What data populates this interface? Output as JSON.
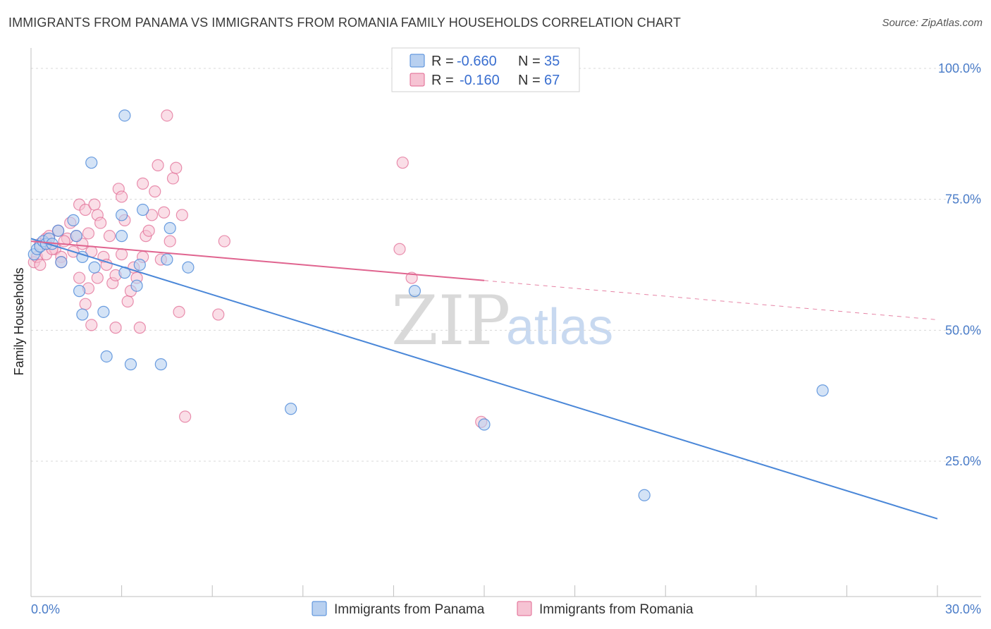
{
  "title": "IMMIGRANTS FROM PANAMA VS IMMIGRANTS FROM ROMANIA FAMILY HOUSEHOLDS CORRELATION CHART",
  "source": "Source: ZipAtlas.com",
  "watermark": {
    "zip": "ZIP",
    "atlas": "atlas"
  },
  "colors": {
    "panama": "#4a87d8",
    "panama_fill": "#b8d0f0",
    "romania": "#e0648f",
    "romania_fill": "#f6c3d3",
    "axis_text": "#4a7cc8"
  },
  "legend": {
    "r_label": "R =",
    "n_label": "N =",
    "rows": [
      {
        "series": "panama",
        "r": "-0.660",
        "n": "35"
      },
      {
        "series": "romania",
        "r": "-0.160",
        "n": "67"
      }
    ]
  },
  "bottom_legend": [
    "Immigrants from Panama",
    "Immigrants from Romania"
  ],
  "chart_data": {
    "type": "scatter",
    "title": "IMMIGRANTS FROM PANAMA VS IMMIGRANTS FROM ROMANIA FAMILY HOUSEHOLDS CORRELATION CHART",
    "xlabel": "",
    "ylabel": "Family Households",
    "xlim": [
      0,
      30
    ],
    "ylim": [
      0,
      100
    ],
    "x_tick_labels": [
      "0.0%",
      "30.0%"
    ],
    "y_ticks": [
      25,
      50,
      75,
      100
    ],
    "y_tick_labels": [
      "25.0%",
      "50.0%",
      "75.0%",
      "100.0%"
    ],
    "grid": true,
    "series": [
      {
        "name": "Immigrants from Panama",
        "r": -0.66,
        "n": 35,
        "points": [
          [
            0.1,
            64.5
          ],
          [
            0.2,
            65.5
          ],
          [
            0.3,
            66
          ],
          [
            0.4,
            67
          ],
          [
            0.5,
            66.5
          ],
          [
            0.6,
            67.5
          ],
          [
            0.7,
            66.5
          ],
          [
            0.9,
            69
          ],
          [
            1.0,
            63
          ],
          [
            1.4,
            71
          ],
          [
            1.5,
            68
          ],
          [
            1.7,
            64
          ],
          [
            2.1,
            62
          ],
          [
            3.0,
            72
          ],
          [
            3.0,
            68
          ],
          [
            3.7,
            73
          ],
          [
            2.0,
            82
          ],
          [
            3.1,
            91
          ],
          [
            3.1,
            61
          ],
          [
            1.7,
            53
          ],
          [
            3.5,
            58.5
          ],
          [
            3.6,
            62.5
          ],
          [
            2.4,
            53.5
          ],
          [
            1.6,
            57.5
          ],
          [
            2.5,
            45
          ],
          [
            3.3,
            43.5
          ],
          [
            4.3,
            43.5
          ],
          [
            4.5,
            63.5
          ],
          [
            4.6,
            69.5
          ],
          [
            5.2,
            62
          ],
          [
            8.6,
            35
          ],
          [
            12.7,
            57.5
          ],
          [
            15.0,
            32
          ],
          [
            20.3,
            18.5
          ],
          [
            26.2,
            38.5
          ]
        ],
        "trend": {
          "x": [
            0,
            30
          ],
          "y": [
            67.5,
            14
          ]
        }
      },
      {
        "name": "Immigrants from Romania",
        "r": -0.16,
        "n": 67,
        "points": [
          [
            0.1,
            63
          ],
          [
            0.2,
            64
          ],
          [
            0.3,
            62.5
          ],
          [
            0.3,
            66.5
          ],
          [
            0.5,
            64.5
          ],
          [
            0.5,
            67.5
          ],
          [
            0.6,
            68
          ],
          [
            0.8,
            65.5
          ],
          [
            0.9,
            69
          ],
          [
            1.0,
            64
          ],
          [
            1.0,
            63
          ],
          [
            1.2,
            67.5
          ],
          [
            1.3,
            70.5
          ],
          [
            1.4,
            65
          ],
          [
            1.5,
            68
          ],
          [
            1.6,
            74
          ],
          [
            1.7,
            66.5
          ],
          [
            1.8,
            73
          ],
          [
            1.9,
            68.5
          ],
          [
            2.0,
            65
          ],
          [
            2.1,
            74
          ],
          [
            2.2,
            72
          ],
          [
            2.3,
            70.5
          ],
          [
            2.4,
            64
          ],
          [
            2.5,
            62.5
          ],
          [
            2.6,
            68
          ],
          [
            2.7,
            59
          ],
          [
            2.8,
            60.5
          ],
          [
            2.9,
            77
          ],
          [
            3.0,
            75.5
          ],
          [
            3.1,
            71
          ],
          [
            3.2,
            55.5
          ],
          [
            3.3,
            57.5
          ],
          [
            3.4,
            62
          ],
          [
            3.5,
            60
          ],
          [
            3.6,
            50.5
          ],
          [
            3.7,
            64
          ],
          [
            3.7,
            78
          ],
          [
            3.8,
            68
          ],
          [
            3.9,
            69
          ],
          [
            4.0,
            72
          ],
          [
            4.1,
            76.5
          ],
          [
            4.2,
            81.5
          ],
          [
            4.3,
            63.5
          ],
          [
            4.4,
            72.5
          ],
          [
            4.5,
            91
          ],
          [
            4.6,
            67
          ],
          [
            4.7,
            79
          ],
          [
            4.8,
            81
          ],
          [
            4.9,
            53.5
          ],
          [
            5.0,
            72
          ],
          [
            5.1,
            33.5
          ],
          [
            6.2,
            53
          ],
          [
            6.4,
            67
          ],
          [
            2.0,
            51
          ],
          [
            2.8,
            50.5
          ],
          [
            1.8,
            55
          ],
          [
            1.6,
            60
          ],
          [
            2.2,
            60
          ],
          [
            3.0,
            64.5
          ],
          [
            12.3,
            82
          ],
          [
            12.2,
            65.5
          ],
          [
            12.6,
            60
          ],
          [
            14.9,
            32.5
          ],
          [
            1.1,
            67
          ],
          [
            0.7,
            65.5
          ],
          [
            1.9,
            58
          ]
        ],
        "trend": {
          "x": [
            0,
            15
          ],
          "y": [
            67,
            59.5
          ]
        },
        "trend_dashed": {
          "x": [
            15,
            30
          ],
          "y": [
            59.5,
            52
          ]
        }
      }
    ]
  }
}
